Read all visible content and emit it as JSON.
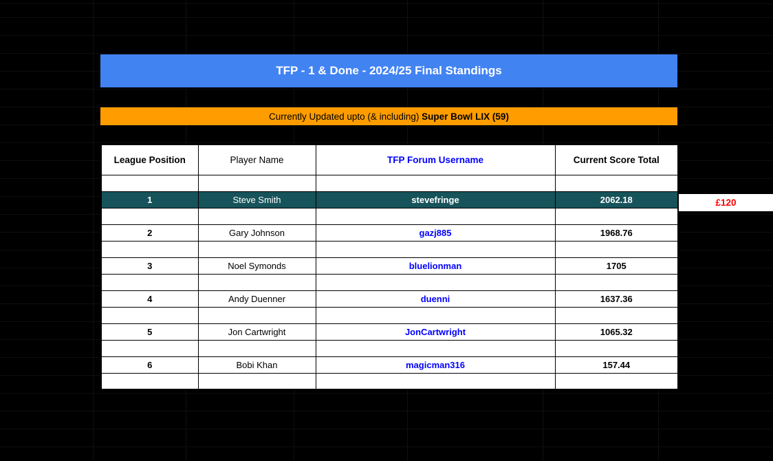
{
  "title_bar": {
    "text": "TFP - 1 & Done - 2024/25 Final Standings"
  },
  "status_bar": {
    "prefix": "Currently Updated upto (& including) ",
    "highlight": "Super Bowl LIX (59)"
  },
  "table": {
    "headers": [
      "League Position",
      "Player Name",
      "TFP Forum Username",
      "Current Score Total"
    ],
    "rows": [
      {
        "position": "1",
        "player": "Steve Smith",
        "username": "stevefringe",
        "score": "2062.18",
        "winner": true
      },
      {
        "position": "2",
        "player": "Gary Johnson",
        "username": "gazj885",
        "score": "1968.76",
        "winner": false
      },
      {
        "position": "3",
        "player": "Noel Symonds",
        "username": "bluelionman",
        "score": "1705",
        "winner": false
      },
      {
        "position": "4",
        "player": "Andy Duenner",
        "username": "duenni",
        "score": "1637.36",
        "winner": false
      },
      {
        "position": "5",
        "player": "Jon Cartwright",
        "username": "JonCartwright",
        "score": "1065.32",
        "winner": false
      },
      {
        "position": "6",
        "player": "Bobi Khan",
        "username": "magicman316",
        "score": "157.44",
        "winner": false
      }
    ]
  },
  "prize": {
    "label": "£120"
  },
  "colors": {
    "title_bg": "#4283f2",
    "banner_bg": "#ff9d00",
    "winner_bg": "#17535a",
    "username_color": "#0000ff",
    "prize_color": "#ff0000",
    "background": "#000000"
  }
}
